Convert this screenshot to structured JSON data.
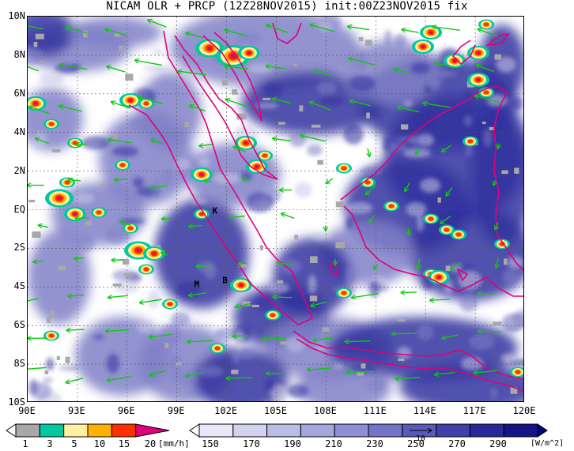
{
  "title": "NICAM OLR + PRCP (12Z28NOV2015) init:00Z23NOV2015 fix",
  "lat_labels": [
    "10N",
    "8N",
    "6N",
    "4N",
    "2N",
    "EQ",
    "2S",
    "4S",
    "6S",
    "8S",
    "10S"
  ],
  "lon_labels": [
    "90E",
    "93E",
    "96E",
    "99E",
    "102E",
    "105E",
    "108E",
    "111E",
    "114E",
    "117E",
    "120E"
  ],
  "place_labels": [
    {
      "text": "K",
      "lon": 101.3,
      "lat": -0.2
    },
    {
      "text": "M",
      "lon": 100.2,
      "lat": -4.0
    },
    {
      "text": "B",
      "lon": 101.9,
      "lat": -3.8
    }
  ],
  "prcp_colorbar": {
    "ticks": [
      "1",
      "3",
      "5",
      "10",
      "15",
      "20"
    ],
    "unit": "[mm/h]",
    "colors": [
      "#a8a8a8",
      "#00c8a0",
      "#fff0a0",
      "#ffb000",
      "#ff3000",
      "#e0007a"
    ]
  },
  "olr_colorbar": {
    "ticks": [
      "150",
      "170",
      "190",
      "210",
      "230",
      "250",
      "270",
      "290"
    ],
    "unit": "[W/m^2]",
    "colors": [
      "#ffffff",
      "#e8e8f6",
      "#d2d2ee",
      "#bcbce6",
      "#a6a6de",
      "#8e8ed4",
      "#7474c8",
      "#5a5abc",
      "#4040aa",
      "#28289a",
      "#141488",
      "#000078"
    ]
  },
  "vector_key_label": "10",
  "colors": {
    "coast": "#e0007a",
    "wind": "#10c810",
    "olr_dark": "#3232a0",
    "olr_mid": "#8080c8",
    "olr_light": "#c8c8e8"
  }
}
